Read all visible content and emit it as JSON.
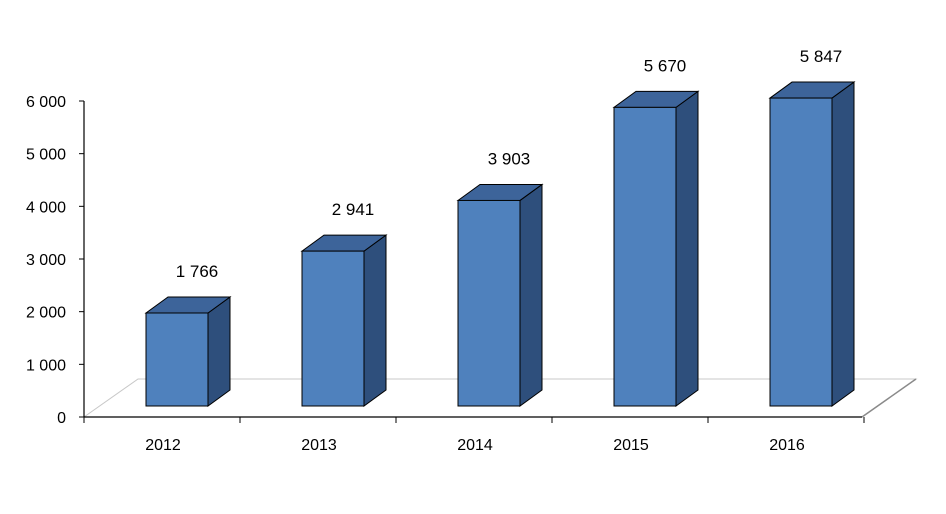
{
  "chart_data": {
    "type": "bar",
    "title": "",
    "xlabel": "",
    "ylabel": "",
    "categories": [
      "2012",
      "2013",
      "2014",
      "2015",
      "2016"
    ],
    "values": [
      1766,
      2941,
      3903,
      5670,
      5847
    ],
    "value_labels": [
      "1 766",
      "2 941",
      "3 903",
      "5 670",
      "5 847"
    ],
    "ylim": [
      0,
      6000
    ],
    "y_ticks": [
      0,
      1000,
      2000,
      3000,
      4000,
      5000,
      6000
    ],
    "y_tick_labels": [
      "0",
      "1 000",
      "2 000",
      "3 000",
      "4 000",
      "5 000",
      "6 000"
    ],
    "grid": false,
    "style": "3d-column",
    "colors": {
      "bar_front": "#4f81bd",
      "bar_top": "#3d649a",
      "bar_side": "#2e4f7c",
      "outline": "#000000",
      "floor": "#c8c8c8"
    }
  }
}
